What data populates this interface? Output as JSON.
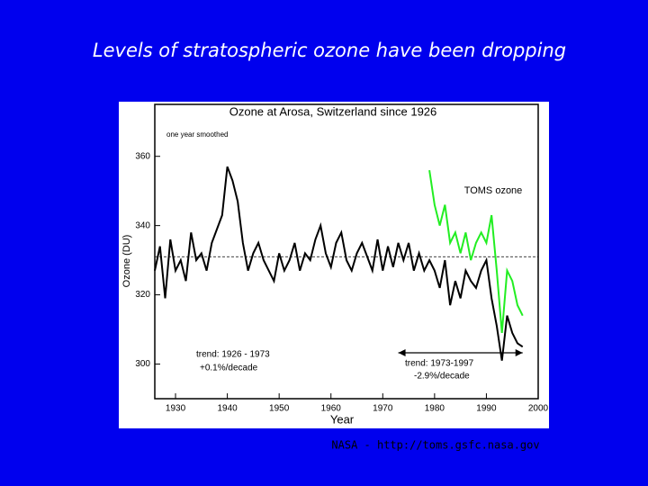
{
  "slide_title": "Levels of stratospheric ozone have been dropping",
  "source": "NASA - http://toms.gsfc.nasa.gov",
  "chart_data": {
    "type": "line",
    "title": "Ozone at Arosa, Switzerland since 1926",
    "subtitle": "one year smoothed",
    "x_label": "Year",
    "y_label": "Ozone (DU)",
    "x": [
      1926,
      1927,
      1928,
      1929,
      1930,
      1931,
      1932,
      1933,
      1934,
      1935,
      1936,
      1937,
      1938,
      1939,
      1940,
      1941,
      1942,
      1943,
      1944,
      1945,
      1946,
      1947,
      1948,
      1949,
      1950,
      1951,
      1952,
      1953,
      1954,
      1955,
      1956,
      1957,
      1958,
      1959,
      1960,
      1961,
      1962,
      1963,
      1964,
      1965,
      1966,
      1967,
      1968,
      1969,
      1970,
      1971,
      1972,
      1973,
      1974,
      1975,
      1976,
      1977,
      1978,
      1979,
      1980,
      1981,
      1982,
      1983,
      1984,
      1985,
      1986,
      1987,
      1988,
      1989,
      1990,
      1991,
      1992,
      1993,
      1994,
      1995,
      1996,
      1997
    ],
    "series": [
      {
        "name": "Arosa",
        "color": "#000000",
        "values": [
          327,
          334,
          319,
          336,
          327,
          330,
          324,
          338,
          330,
          332,
          327,
          335,
          339,
          343,
          357,
          353,
          347,
          335,
          327,
          332,
          335,
          330,
          327,
          324,
          332,
          327,
          330,
          335,
          327,
          332,
          330,
          336,
          340,
          332,
          328,
          335,
          338,
          330,
          327,
          332,
          335,
          331,
          327,
          336,
          327,
          334,
          328,
          335,
          330,
          335,
          327,
          332,
          327,
          330,
          327,
          322,
          330,
          317,
          324,
          319,
          327,
          324,
          322,
          327,
          330,
          319,
          311,
          301,
          314,
          309,
          306,
          305
        ]
      },
      {
        "name": "TOMS ozone",
        "color": "#22ee22",
        "values": [
          null,
          null,
          null,
          null,
          null,
          null,
          null,
          null,
          null,
          null,
          null,
          null,
          null,
          null,
          null,
          null,
          null,
          null,
          null,
          null,
          null,
          null,
          null,
          null,
          null,
          null,
          null,
          null,
          null,
          null,
          null,
          null,
          null,
          null,
          null,
          null,
          null,
          null,
          null,
          null,
          null,
          null,
          null,
          null,
          null,
          null,
          null,
          null,
          null,
          null,
          null,
          null,
          null,
          356,
          346,
          340,
          346,
          335,
          338,
          332,
          338,
          330,
          335,
          338,
          335,
          343,
          327,
          309,
          327,
          324,
          317,
          314
        ]
      }
    ],
    "reference_line": 331,
    "annotations": [
      {
        "text": "trend: 1926 - 1973",
        "text2": "+0.1%/decade"
      },
      {
        "text": "trend: 1973-1997",
        "text2": "-2.9%/decade",
        "from": 1973,
        "to": 1997
      }
    ],
    "xlim": [
      1926,
      2000
    ],
    "xticks": [
      1930,
      1940,
      1950,
      1960,
      1970,
      1980,
      1990,
      2000
    ],
    "ylim": [
      290,
      375
    ],
    "yticks": [
      300,
      320,
      340,
      360
    ]
  }
}
